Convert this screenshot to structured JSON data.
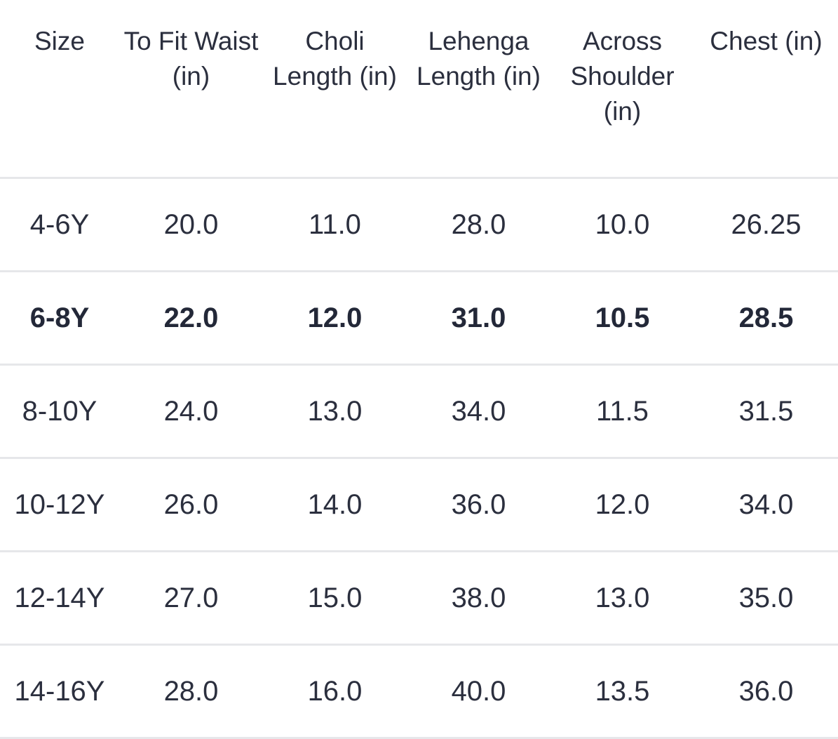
{
  "table": {
    "headers": [
      "Size",
      "To Fit Waist (in)",
      "Choli Length (in)",
      "Lehenga Length (in)",
      "Across Shoulder (in)",
      "Chest (in)"
    ],
    "rows": [
      [
        "4-6Y",
        "20.0",
        "11.0",
        "28.0",
        "10.0",
        "26.25"
      ],
      [
        "6-8Y",
        "22.0",
        "12.0",
        "31.0",
        "10.5",
        "28.5"
      ],
      [
        "8-10Y",
        "24.0",
        "13.0",
        "34.0",
        "11.5",
        "31.5"
      ],
      [
        "10-12Y",
        "26.0",
        "14.0",
        "36.0",
        "12.0",
        "34.0"
      ],
      [
        "12-14Y",
        "27.0",
        "15.0",
        "38.0",
        "13.0",
        "35.0"
      ],
      [
        "14-16Y",
        "28.0",
        "16.0",
        "40.0",
        "13.5",
        "36.0"
      ]
    ],
    "highlighted_row": "6-8Y"
  },
  "colors": {
    "text": "#2b2f3e",
    "divider": "#e6e7ea",
    "background": "#ffffff"
  }
}
